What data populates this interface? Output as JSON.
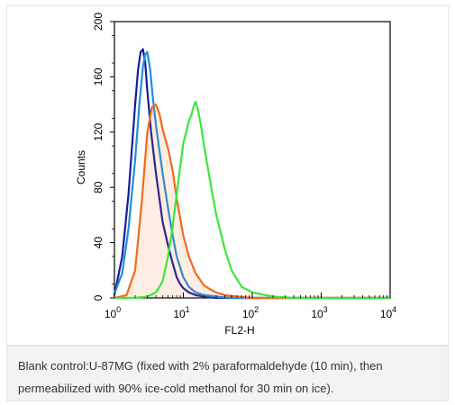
{
  "figure": {
    "caption": "Blank control:U-87MG (fixed with 2% paraformaldehyde (10 min), then permeabilized with 90% ice-cold methanol for 30 min on ice)."
  },
  "chart_data": {
    "type": "line",
    "title": "",
    "xlabel": "FL2-H",
    "ylabel": "Counts",
    "x_scale": "log",
    "xlim": [
      1,
      10000
    ],
    "ylim": [
      0,
      200
    ],
    "x_ticks": [
      1,
      10,
      100,
      1000,
      10000
    ],
    "x_tick_labels": [
      {
        "base": "10",
        "exp": "0"
      },
      {
        "base": "10",
        "exp": "1"
      },
      {
        "base": "10",
        "exp": "2"
      },
      {
        "base": "10",
        "exp": "3"
      },
      {
        "base": "10",
        "exp": "4"
      }
    ],
    "y_ticks": [
      0,
      40,
      80,
      120,
      160,
      200
    ],
    "grid": false,
    "legend": "none",
    "series": [
      {
        "color": "#1a1aa0",
        "x": [
          1,
          1.3,
          1.6,
          2,
          2.2,
          2.4,
          2.6,
          2.8,
          3,
          3.4,
          4,
          5,
          6,
          7,
          8,
          9,
          10,
          12,
          15,
          20,
          30,
          50,
          100,
          1000,
          10000
        ],
        "y": [
          2,
          30,
          75,
          140,
          165,
          178,
          180,
          170,
          150,
          120,
          90,
          55,
          38,
          25,
          15,
          10,
          7,
          4,
          2,
          1,
          0,
          0,
          0,
          0,
          0
        ]
      },
      {
        "color": "#1e8fe0",
        "x": [
          1,
          1.3,
          1.6,
          2,
          2.3,
          2.6,
          2.8,
          3,
          3.3,
          3.6,
          4,
          5,
          6,
          7,
          8,
          10,
          12,
          15,
          20,
          30,
          50,
          100,
          1000,
          10000
        ],
        "y": [
          3,
          18,
          50,
          100,
          140,
          168,
          176,
          178,
          165,
          145,
          125,
          90,
          65,
          45,
          30,
          15,
          8,
          4,
          2,
          1,
          0,
          0,
          0,
          0
        ]
      },
      {
        "color": "#f26a1b",
        "x": [
          1,
          1.5,
          2,
          2.5,
          3,
          3.5,
          4,
          4.5,
          5,
          6,
          7,
          8,
          10,
          12,
          15,
          20,
          25,
          30,
          40,
          60,
          100,
          1000,
          10000
        ],
        "y": [
          0,
          2,
          20,
          70,
          120,
          138,
          140,
          133,
          122,
          108,
          92,
          72,
          45,
          30,
          18,
          9,
          6,
          4,
          2,
          1,
          0,
          0,
          0
        ],
        "fill": "#f26a1b"
      },
      {
        "color": "#3ce63c",
        "x": [
          1,
          2,
          3,
          4,
          5,
          6,
          7,
          8,
          9,
          10,
          11,
          12,
          13,
          14,
          15,
          16,
          18,
          20,
          25,
          30,
          40,
          50,
          70,
          100,
          200,
          400,
          1000,
          10000
        ],
        "y": [
          0,
          0,
          1,
          4,
          12,
          30,
          52,
          75,
          95,
          112,
          120,
          128,
          132,
          138,
          142,
          138,
          125,
          110,
          82,
          60,
          35,
          20,
          8,
          4,
          1,
          0,
          0,
          0
        ]
      }
    ]
  }
}
